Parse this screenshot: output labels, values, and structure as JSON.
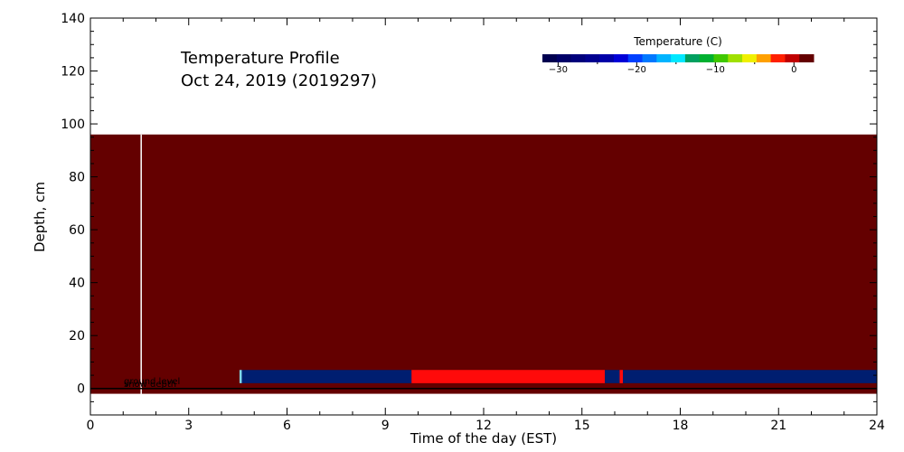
{
  "chart_data": {
    "type": "heatmap",
    "title_lines": [
      "Temperature Profile",
      "Oct 24, 2019 (2019297)"
    ],
    "xlabel": "Time of the day (EST)",
    "ylabel": "Depth, cm",
    "xlim": [
      0,
      24
    ],
    "ylim": [
      -10,
      140
    ],
    "x_ticks": [
      0,
      3,
      6,
      9,
      12,
      15,
      18,
      21,
      24
    ],
    "y_ticks": [
      0,
      20,
      40,
      60,
      80,
      100,
      120,
      140
    ],
    "field": {
      "x_range": [
        0,
        24
      ],
      "y_range": [
        -2,
        96
      ],
      "color": "#640000"
    },
    "bands": [
      {
        "x_start": 4.55,
        "x_end": 4.62,
        "y_range": [
          2,
          7
        ],
        "color": "#80d8e8"
      },
      {
        "x_start": 4.62,
        "x_end": 9.8,
        "y_range": [
          2,
          7
        ],
        "color": "#001e70"
      },
      {
        "x_start": 9.8,
        "x_end": 15.7,
        "y_range": [
          2,
          7
        ],
        "color": "#ff0a0a"
      },
      {
        "x_start": 15.7,
        "x_end": 16.15,
        "y_range": [
          2,
          7
        ],
        "color": "#001e70"
      },
      {
        "x_start": 16.15,
        "x_end": 16.25,
        "y_range": [
          2,
          7
        ],
        "color": "#ff0a0a"
      },
      {
        "x_start": 16.25,
        "x_end": 24,
        "y_range": [
          2,
          7
        ],
        "color": "#001e70"
      }
    ],
    "vertical_line": {
      "x": 1.55,
      "color": "#ffffff"
    },
    "ground_level": {
      "y": 0,
      "label": "ground level"
    },
    "snow_depth": {
      "y": 0,
      "label": "snow depth"
    },
    "colorbar": {
      "title": "Temperature (C)",
      "range": [
        -32,
        2.5
      ],
      "tick_values": [
        -30,
        -20,
        -10,
        0
      ],
      "tick_labels": [
        "−30",
        "−20",
        "−10",
        "0"
      ],
      "colors": [
        "#000050",
        "#000068",
        "#00007c",
        "#000090",
        "#0000a8",
        "#0000d8",
        "#0040ff",
        "#0078ff",
        "#00b4ff",
        "#00e8ff",
        "#00a060",
        "#00b030",
        "#40c800",
        "#a0e000",
        "#f0f000",
        "#ffa000",
        "#ff2000",
        "#c00000",
        "#640000"
      ]
    }
  }
}
